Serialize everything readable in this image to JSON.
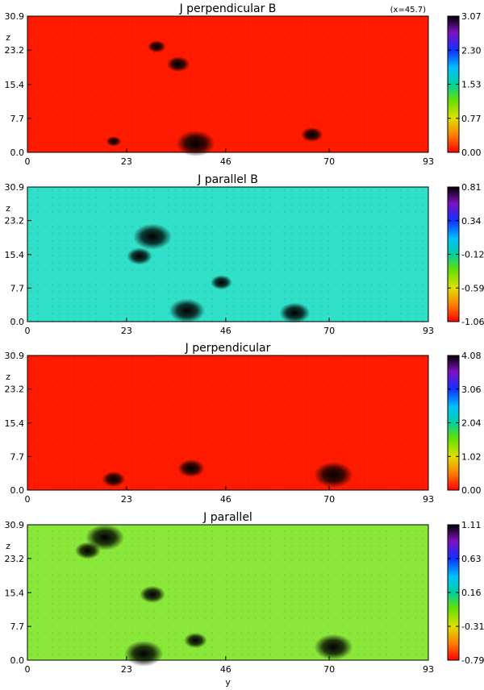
{
  "chart_data": [
    {
      "type": "heatmap",
      "title": "J perpendicular B",
      "annotation": "(x=45.7)",
      "ylabel": "z",
      "xlabel": "",
      "x_ticks": [
        "0",
        "23",
        "46",
        "70",
        "93"
      ],
      "y_ticks": [
        "0.0",
        "7.7",
        "15.4",
        "23.2",
        "30.9"
      ],
      "xlim": [
        0,
        93
      ],
      "ylim": [
        0,
        30.9
      ],
      "colorbar_ticks": [
        "0.00",
        "0.77",
        "1.53",
        "2.30",
        "3.07"
      ],
      "colorbar_range": [
        0.0,
        3.07
      ],
      "background_color": "#ff1a00",
      "features": [
        {
          "y": 39,
          "z": 2.0,
          "level": 3.07
        },
        {
          "y": 20,
          "z": 2.5,
          "level": 1.5
        },
        {
          "y": 66,
          "z": 4.0,
          "level": 2.0
        },
        {
          "y": 30,
          "z": 24,
          "level": 1.3
        },
        {
          "y": 35,
          "z": 20,
          "level": 1.0
        }
      ]
    },
    {
      "type": "heatmap",
      "title": "J parallel B",
      "ylabel": "z",
      "xlabel": "",
      "x_ticks": [
        "0",
        "23",
        "46",
        "70",
        "93"
      ],
      "y_ticks": [
        "0.0",
        "7.7",
        "15.4",
        "23.2",
        "30.9"
      ],
      "xlim": [
        0,
        93
      ],
      "ylim": [
        0,
        30.9
      ],
      "colorbar_ticks": [
        "-1.06",
        "-0.59",
        "-0.12",
        "0.34",
        "0.81"
      ],
      "colorbar_range": [
        -1.06,
        0.81
      ],
      "background_color": "#30e0c8",
      "features": [
        {
          "y": 29,
          "z": 19.5,
          "level": 0.81
        },
        {
          "y": 26,
          "z": 15,
          "level": 0.3
        },
        {
          "y": 37,
          "z": 2.5,
          "level": 0.7
        },
        {
          "y": 62,
          "z": 2.0,
          "level": 0.5
        },
        {
          "y": 45,
          "z": 9,
          "level": -0.4
        }
      ]
    },
    {
      "type": "heatmap",
      "title": "J perpendicular",
      "ylabel": "z",
      "xlabel": "",
      "x_ticks": [
        "0",
        "23",
        "46",
        "70",
        "93"
      ],
      "y_ticks": [
        "0.0",
        "7.7",
        "15.4",
        "23.2",
        "30.9"
      ],
      "xlim": [
        0,
        93
      ],
      "ylim": [
        0,
        30.9
      ],
      "colorbar_ticks": [
        "0.00",
        "1.02",
        "2.04",
        "3.06",
        "4.08"
      ],
      "colorbar_range": [
        0.0,
        4.08
      ],
      "background_color": "#ff1a00",
      "features": [
        {
          "y": 71,
          "z": 3.5,
          "level": 4.08
        },
        {
          "y": 20,
          "z": 2.5,
          "level": 1.3
        },
        {
          "y": 38,
          "z": 5,
          "level": 1.0
        }
      ]
    },
    {
      "type": "heatmap",
      "title": "J parallel",
      "ylabel": "z",
      "xlabel": "y",
      "x_ticks": [
        "0",
        "23",
        "46",
        "70",
        "93"
      ],
      "y_ticks": [
        "0.0",
        "7.7",
        "15.4",
        "23.2",
        "30.9"
      ],
      "xlim": [
        0,
        93
      ],
      "ylim": [
        0,
        30.9
      ],
      "colorbar_ticks": [
        "-0.79",
        "-0.31",
        "0.16",
        "0.63",
        "1.11"
      ],
      "colorbar_range": [
        -0.79,
        1.11
      ],
      "background_color": "#8ae83a",
      "features": [
        {
          "y": 27,
          "z": 1.5,
          "level": 1.11
        },
        {
          "y": 18,
          "z": 28,
          "level": -0.79
        },
        {
          "y": 71,
          "z": 3.0,
          "level": 1.11
        },
        {
          "y": 14,
          "z": 25,
          "level": 0.6
        },
        {
          "y": 29,
          "z": 15,
          "level": 0.6
        },
        {
          "y": 39,
          "z": 4.5,
          "level": 0.5
        }
      ]
    }
  ]
}
